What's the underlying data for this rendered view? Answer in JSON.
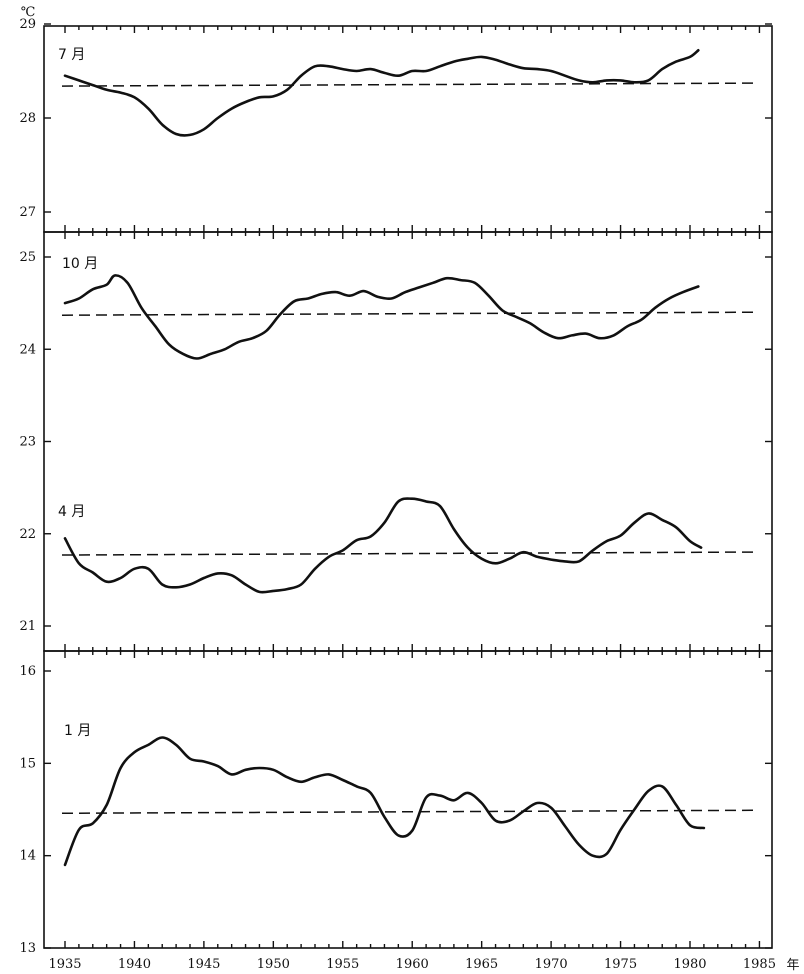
{
  "chart_data": {
    "type": "line",
    "title": "",
    "xlabel": "年",
    "ylabel": "℃",
    "xlim": [
      1935,
      1985
    ],
    "x_ticks": [
      "1935",
      "1940",
      "1945",
      "1950",
      "1955",
      "1960",
      "1965",
      "1970",
      "1975",
      "1980",
      "1985"
    ],
    "y_tick_labels": [
      "29",
      "28",
      "27",
      "25",
      "24",
      "23",
      "22",
      "21",
      "16",
      "15",
      "14",
      "13"
    ],
    "panels": [
      {
        "name": "7 月",
        "ylim": [
          26.8,
          29.0
        ],
        "mean": 28.35,
        "series": [
          {
            "x": 1935,
            "y": 28.45
          },
          {
            "x": 1936,
            "y": 28.4
          },
          {
            "x": 1937,
            "y": 28.35
          },
          {
            "x": 1938,
            "y": 28.3
          },
          {
            "x": 1939,
            "y": 28.27
          },
          {
            "x": 1940,
            "y": 28.22
          },
          {
            "x": 1941,
            "y": 28.1
          },
          {
            "x": 1942,
            "y": 27.93
          },
          {
            "x": 1943,
            "y": 27.83
          },
          {
            "x": 1944,
            "y": 27.82
          },
          {
            "x": 1945,
            "y": 27.88
          },
          {
            "x": 1946,
            "y": 28.0
          },
          {
            "x": 1947,
            "y": 28.1
          },
          {
            "x": 1948,
            "y": 28.17
          },
          {
            "x": 1949,
            "y": 28.22
          },
          {
            "x": 1950,
            "y": 28.23
          },
          {
            "x": 1951,
            "y": 28.3
          },
          {
            "x": 1952,
            "y": 28.45
          },
          {
            "x": 1953,
            "y": 28.55
          },
          {
            "x": 1954,
            "y": 28.55
          },
          {
            "x": 1955,
            "y": 28.52
          },
          {
            "x": 1956,
            "y": 28.5
          },
          {
            "x": 1957,
            "y": 28.52
          },
          {
            "x": 1958,
            "y": 28.48
          },
          {
            "x": 1959,
            "y": 28.45
          },
          {
            "x": 1960,
            "y": 28.5
          },
          {
            "x": 1961,
            "y": 28.5
          },
          {
            "x": 1962,
            "y": 28.55
          },
          {
            "x": 1963,
            "y": 28.6
          },
          {
            "x": 1964,
            "y": 28.63
          },
          {
            "x": 1965,
            "y": 28.65
          },
          {
            "x": 1966,
            "y": 28.62
          },
          {
            "x": 1967,
            "y": 28.57
          },
          {
            "x": 1968,
            "y": 28.53
          },
          {
            "x": 1969,
            "y": 28.52
          },
          {
            "x": 1970,
            "y": 28.5
          },
          {
            "x": 1971,
            "y": 28.45
          },
          {
            "x": 1972,
            "y": 28.4
          },
          {
            "x": 1973,
            "y": 28.38
          },
          {
            "x": 1974,
            "y": 28.4
          },
          {
            "x": 1975,
            "y": 28.4
          },
          {
            "x": 1976,
            "y": 28.38
          },
          {
            "x": 1977,
            "y": 28.4
          },
          {
            "x": 1978,
            "y": 28.52
          },
          {
            "x": 1979,
            "y": 28.6
          },
          {
            "x": 1980,
            "y": 28.65
          },
          {
            "x": 1980.6,
            "y": 28.72
          }
        ]
      },
      {
        "name": "10 月",
        "ylim": [
          20.8,
          25.2
        ],
        "mean": 24.38,
        "series": [
          {
            "x": 1935,
            "y": 24.5
          },
          {
            "x": 1936,
            "y": 24.55
          },
          {
            "x": 1937,
            "y": 24.65
          },
          {
            "x": 1938,
            "y": 24.7
          },
          {
            "x": 1938.6,
            "y": 24.8
          },
          {
            "x": 1939.5,
            "y": 24.72
          },
          {
            "x": 1940.5,
            "y": 24.45
          },
          {
            "x": 1941.5,
            "y": 24.25
          },
          {
            "x": 1942.5,
            "y": 24.05
          },
          {
            "x": 1943.5,
            "y": 23.95
          },
          {
            "x": 1944.5,
            "y": 23.9
          },
          {
            "x": 1945.5,
            "y": 23.95
          },
          {
            "x": 1946.5,
            "y": 24.0
          },
          {
            "x": 1947.5,
            "y": 24.08
          },
          {
            "x": 1948.5,
            "y": 24.12
          },
          {
            "x": 1949.5,
            "y": 24.2
          },
          {
            "x": 1950.5,
            "y": 24.38
          },
          {
            "x": 1951.5,
            "y": 24.52
          },
          {
            "x": 1952.5,
            "y": 24.55
          },
          {
            "x": 1953.5,
            "y": 24.6
          },
          {
            "x": 1954.5,
            "y": 24.62
          },
          {
            "x": 1955.5,
            "y": 24.58
          },
          {
            "x": 1956.5,
            "y": 24.63
          },
          {
            "x": 1957.5,
            "y": 24.57
          },
          {
            "x": 1958.5,
            "y": 24.55
          },
          {
            "x": 1959.5,
            "y": 24.62
          },
          {
            "x": 1960.5,
            "y": 24.67
          },
          {
            "x": 1961.5,
            "y": 24.72
          },
          {
            "x": 1962.5,
            "y": 24.77
          },
          {
            "x": 1963.5,
            "y": 24.75
          },
          {
            "x": 1964.5,
            "y": 24.72
          },
          {
            "x": 1965.5,
            "y": 24.58
          },
          {
            "x": 1966.5,
            "y": 24.42
          },
          {
            "x": 1967.5,
            "y": 24.35
          },
          {
            "x": 1968.5,
            "y": 24.28
          },
          {
            "x": 1969.5,
            "y": 24.18
          },
          {
            "x": 1970.5,
            "y": 24.12
          },
          {
            "x": 1971.5,
            "y": 24.15
          },
          {
            "x": 1972.5,
            "y": 24.17
          },
          {
            "x": 1973.5,
            "y": 24.12
          },
          {
            "x": 1974.5,
            "y": 24.15
          },
          {
            "x": 1975.5,
            "y": 24.25
          },
          {
            "x": 1976.5,
            "y": 24.32
          },
          {
            "x": 1977.5,
            "y": 24.45
          },
          {
            "x": 1978.5,
            "y": 24.55
          },
          {
            "x": 1979.5,
            "y": 24.62
          },
          {
            "x": 1980.6,
            "y": 24.68
          }
        ]
      },
      {
        "name": "4 月",
        "ylim": [
          20.8,
          25.2
        ],
        "mean": 21.78,
        "series": [
          {
            "x": 1935,
            "y": 21.95
          },
          {
            "x": 1936,
            "y": 21.68
          },
          {
            "x": 1937,
            "y": 21.58
          },
          {
            "x": 1938,
            "y": 21.48
          },
          {
            "x": 1939,
            "y": 21.52
          },
          {
            "x": 1940,
            "y": 21.62
          },
          {
            "x": 1941,
            "y": 21.62
          },
          {
            "x": 1942,
            "y": 21.45
          },
          {
            "x": 1943,
            "y": 21.42
          },
          {
            "x": 1944,
            "y": 21.45
          },
          {
            "x": 1945,
            "y": 21.52
          },
          {
            "x": 1946,
            "y": 21.57
          },
          {
            "x": 1947,
            "y": 21.55
          },
          {
            "x": 1948,
            "y": 21.45
          },
          {
            "x": 1949,
            "y": 21.37
          },
          {
            "x": 1950,
            "y": 21.38
          },
          {
            "x": 1951,
            "y": 21.4
          },
          {
            "x": 1952,
            "y": 21.45
          },
          {
            "x": 1953,
            "y": 21.62
          },
          {
            "x": 1954,
            "y": 21.75
          },
          {
            "x": 1955,
            "y": 21.82
          },
          {
            "x": 1956,
            "y": 21.93
          },
          {
            "x": 1957,
            "y": 21.97
          },
          {
            "x": 1958,
            "y": 22.12
          },
          {
            "x": 1959,
            "y": 22.35
          },
          {
            "x": 1960,
            "y": 22.38
          },
          {
            "x": 1961,
            "y": 22.35
          },
          {
            "x": 1962,
            "y": 22.3
          },
          {
            "x": 1963,
            "y": 22.05
          },
          {
            "x": 1964,
            "y": 21.85
          },
          {
            "x": 1965,
            "y": 21.73
          },
          {
            "x": 1966,
            "y": 21.68
          },
          {
            "x": 1967,
            "y": 21.73
          },
          {
            "x": 1968,
            "y": 21.8
          },
          {
            "x": 1969,
            "y": 21.75
          },
          {
            "x": 1970,
            "y": 21.72
          },
          {
            "x": 1971,
            "y": 21.7
          },
          {
            "x": 1972,
            "y": 21.7
          },
          {
            "x": 1973,
            "y": 21.82
          },
          {
            "x": 1974,
            "y": 21.92
          },
          {
            "x": 1975,
            "y": 21.98
          },
          {
            "x": 1976,
            "y": 22.12
          },
          {
            "x": 1977,
            "y": 22.22
          },
          {
            "x": 1978,
            "y": 22.15
          },
          {
            "x": 1979,
            "y": 22.07
          },
          {
            "x": 1980,
            "y": 21.92
          },
          {
            "x": 1980.8,
            "y": 21.85
          }
        ]
      },
      {
        "name": "1 月",
        "ylim": [
          13.0,
          16.2
        ],
        "mean": 14.47,
        "series": [
          {
            "x": 1935,
            "y": 13.9
          },
          {
            "x": 1936,
            "y": 14.28
          },
          {
            "x": 1937,
            "y": 14.35
          },
          {
            "x": 1938,
            "y": 14.55
          },
          {
            "x": 1939,
            "y": 14.95
          },
          {
            "x": 1940,
            "y": 15.12
          },
          {
            "x": 1941,
            "y": 15.2
          },
          {
            "x": 1942,
            "y": 15.28
          },
          {
            "x": 1943,
            "y": 15.2
          },
          {
            "x": 1944,
            "y": 15.05
          },
          {
            "x": 1945,
            "y": 15.02
          },
          {
            "x": 1946,
            "y": 14.97
          },
          {
            "x": 1947,
            "y": 14.88
          },
          {
            "x": 1948,
            "y": 14.93
          },
          {
            "x": 1949,
            "y": 14.95
          },
          {
            "x": 1950,
            "y": 14.93
          },
          {
            "x": 1951,
            "y": 14.85
          },
          {
            "x": 1952,
            "y": 14.8
          },
          {
            "x": 1953,
            "y": 14.85
          },
          {
            "x": 1954,
            "y": 14.88
          },
          {
            "x": 1955,
            "y": 14.82
          },
          {
            "x": 1956,
            "y": 14.75
          },
          {
            "x": 1957,
            "y": 14.68
          },
          {
            "x": 1958,
            "y": 14.42
          },
          {
            "x": 1959,
            "y": 14.22
          },
          {
            "x": 1960,
            "y": 14.27
          },
          {
            "x": 1961,
            "y": 14.63
          },
          {
            "x": 1962,
            "y": 14.65
          },
          {
            "x": 1963,
            "y": 14.6
          },
          {
            "x": 1964,
            "y": 14.68
          },
          {
            "x": 1965,
            "y": 14.57
          },
          {
            "x": 1966,
            "y": 14.38
          },
          {
            "x": 1967,
            "y": 14.38
          },
          {
            "x": 1968,
            "y": 14.48
          },
          {
            "x": 1969,
            "y": 14.57
          },
          {
            "x": 1970,
            "y": 14.52
          },
          {
            "x": 1971,
            "y": 14.32
          },
          {
            "x": 1972,
            "y": 14.12
          },
          {
            "x": 1973,
            "y": 14.0
          },
          {
            "x": 1974,
            "y": 14.02
          },
          {
            "x": 1975,
            "y": 14.28
          },
          {
            "x": 1976,
            "y": 14.5
          },
          {
            "x": 1977,
            "y": 14.7
          },
          {
            "x": 1978,
            "y": 14.75
          },
          {
            "x": 1979,
            "y": 14.55
          },
          {
            "x": 1980,
            "y": 14.33
          },
          {
            "x": 1981,
            "y": 14.3
          }
        ]
      }
    ]
  }
}
